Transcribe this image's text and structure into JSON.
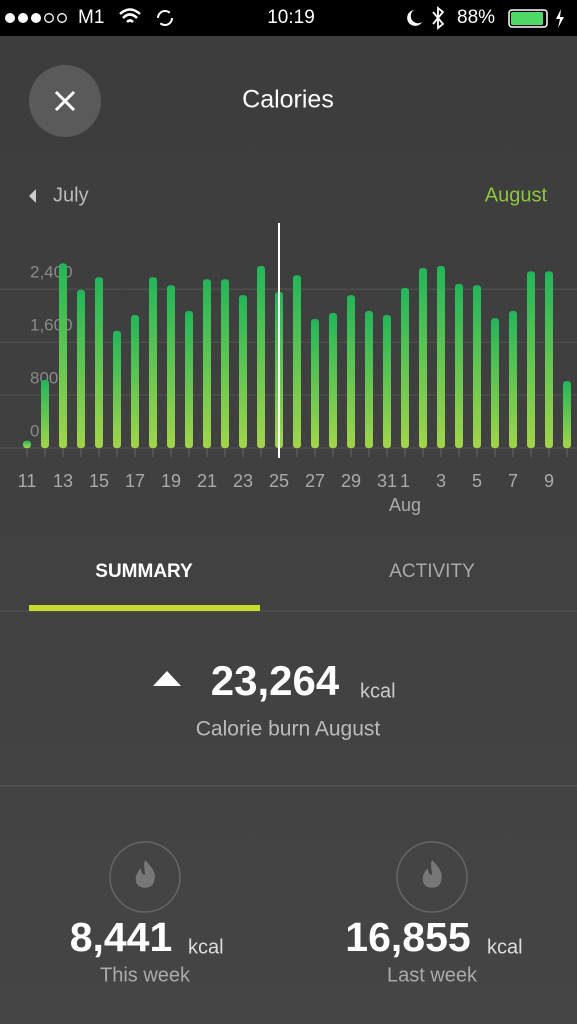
{
  "status_bar": {
    "carrier": "M1",
    "time": "10:19",
    "battery": "88%"
  },
  "header": {
    "title": "Calories"
  },
  "chart_data": {
    "type": "bar",
    "prev_label": "July",
    "next_label": "August",
    "categories": [
      "11",
      null,
      "13",
      null,
      "15",
      null,
      "17",
      null,
      "19",
      null,
      "21",
      null,
      "23",
      null,
      "25",
      null,
      "27",
      null,
      "29",
      null,
      "31",
      "1",
      null,
      "3",
      null,
      "5",
      null,
      "7",
      null,
      "9",
      null
    ],
    "x_sublabel": "Aug",
    "values": [
      110,
      1030,
      2790,
      2390,
      2580,
      1770,
      2010,
      2580,
      2460,
      2070,
      2550,
      2550,
      2310,
      2750,
      2360,
      2610,
      1950,
      2040,
      2310,
      2070,
      2010,
      2420,
      2720,
      2750,
      2480,
      2460,
      1960,
      2070,
      2670,
      2670,
      1010
    ],
    "colors": [
      "#22b65a",
      "#a2d44a"
    ],
    "ylim": [
      0,
      3370
    ],
    "yticks": [
      0,
      800,
      {
        "value": 1600,
        "label": "1,600"
      },
      {
        "value": 2400,
        "label": "2,400"
      }
    ],
    "grid": true
  },
  "tabs": [
    "SUMMARY",
    "ACTIVITY"
  ],
  "summary": {
    "total": "23,264",
    "unit": "kcal",
    "caption": "Calorie burn August"
  },
  "weeks": [
    {
      "value": "8,441",
      "unit": "kcal",
      "label": "This week"
    },
    {
      "value": "16,855",
      "unit": "kcal",
      "label": "Last week"
    }
  ]
}
